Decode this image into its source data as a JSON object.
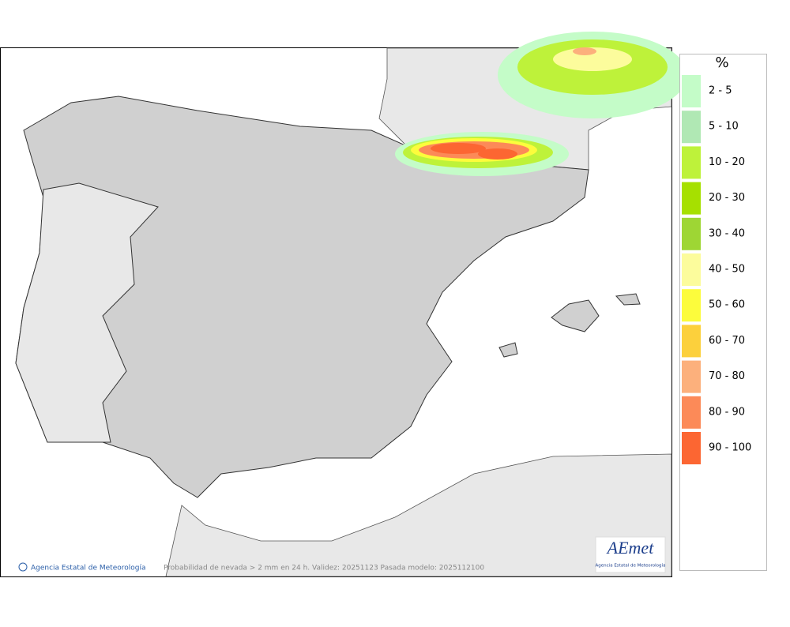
{
  "legend": {
    "title": "%",
    "items": [
      {
        "label": "2 - 5",
        "color": "#c4fcc8"
      },
      {
        "label": "5 - 10",
        "color": "#b0e8b4"
      },
      {
        "label": "10 - 20",
        "color": "#bef23a"
      },
      {
        "label": "20 - 30",
        "color": "#a6e000"
      },
      {
        "label": "30 - 40",
        "color": "#9ed634"
      },
      {
        "label": "40 - 50",
        "color": "#fcfc9c"
      },
      {
        "label": "50 - 60",
        "color": "#fcfc3c"
      },
      {
        "label": "60 - 70",
        "color": "#fcd03c"
      },
      {
        "label": "70 - 80",
        "color": "#fcb07c"
      },
      {
        "label": "80 - 90",
        "color": "#fc8a58"
      },
      {
        "label": "90 - 100",
        "color": "#fc6632"
      }
    ]
  },
  "footer": {
    "credit": "Agencia Estatal de Meteorología",
    "caption": "Probabilidad de nevada > 2 mm en 24 h. Validez: 20251123 Pasada modelo: 2025112100"
  },
  "logo": {
    "name": "AEmet",
    "subtitle": "Agencia Estatal de Meteorología"
  }
}
